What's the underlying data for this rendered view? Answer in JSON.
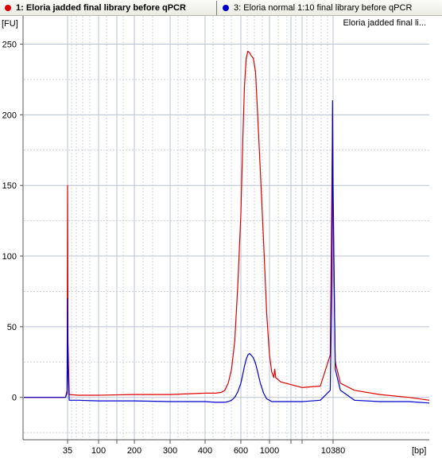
{
  "legend": {
    "items": [
      {
        "label": "1: Eloria jadded final library before qPCR",
        "color": "#dd0000",
        "active": true
      },
      {
        "label": "3: Eloria normal 1:10 final library before qPCR",
        "color": "#0000cc",
        "active": false
      }
    ]
  },
  "chart_data": {
    "type": "line",
    "title": "Eloria jadded final li...",
    "ylabel": "[FU]",
    "xlabel": "[bp]",
    "ylim": [
      -30,
      270
    ],
    "yticks": [
      0,
      50,
      100,
      150,
      200,
      250
    ],
    "x_tick_labels": [
      "35",
      "100",
      "200",
      "300",
      "400",
      "600",
      "1000",
      "10380"
    ],
    "x_axis_note": "bp axis is non-linear (ladder-based); x values in bp",
    "series": [
      {
        "name": "1: Eloria jadded final library before qPCR",
        "color": "#dd0000",
        "x": [
          10,
          20,
          33,
          34.5,
          35,
          35.5,
          37,
          50,
          100,
          200,
          300,
          400,
          450,
          480,
          500,
          520,
          540,
          560,
          580,
          600,
          620,
          640,
          660,
          680,
          700,
          720,
          750,
          780,
          810,
          850,
          900,
          950,
          1000,
          1100,
          1200,
          1250,
          1300,
          1400,
          1600,
          2000,
          4000,
          7000,
          9500,
          10000,
          10200,
          10380,
          10700,
          11500,
          14000,
          20000,
          30000,
          40000
        ],
        "values": [
          0,
          0,
          0,
          5,
          150,
          40,
          2,
          1.5,
          1.5,
          2,
          2,
          3,
          3,
          3.5,
          5,
          10,
          20,
          40,
          80,
          130,
          180,
          220,
          240,
          245,
          244,
          242,
          240,
          230,
          200,
          160,
          110,
          60,
          30,
          18,
          14,
          20,
          14,
          13,
          11,
          10,
          7,
          8,
          30,
          150,
          200,
          130,
          25,
          10,
          5,
          2,
          0,
          -2
        ]
      },
      {
        "name": "3: Eloria normal 1:10 final library before qPCR",
        "color": "#0000cc",
        "x": [
          10,
          20,
          33,
          34.5,
          35,
          35.5,
          37,
          50,
          100,
          200,
          300,
          400,
          450,
          500,
          520,
          540,
          560,
          580,
          600,
          620,
          640,
          660,
          680,
          700,
          720,
          750,
          780,
          810,
          850,
          900,
          950,
          1000,
          1100,
          1200,
          1400,
          2000,
          4000,
          7000,
          9500,
          10000,
          10200,
          10380,
          10700,
          11500,
          14000,
          20000,
          30000,
          40000
        ],
        "values": [
          0,
          0,
          0,
          3,
          70,
          20,
          -2,
          -2,
          -2.5,
          -2.5,
          -3,
          -3,
          -3.5,
          -3.5,
          -3,
          -2,
          0,
          4,
          10,
          16,
          22,
          27,
          30,
          31,
          30,
          28,
          24,
          18,
          10,
          3,
          -1,
          -2,
          -3,
          -3,
          -3,
          -3,
          -3,
          -2,
          5,
          80,
          210,
          150,
          20,
          5,
          -2,
          -3,
          -3,
          -4
        ]
      }
    ]
  }
}
